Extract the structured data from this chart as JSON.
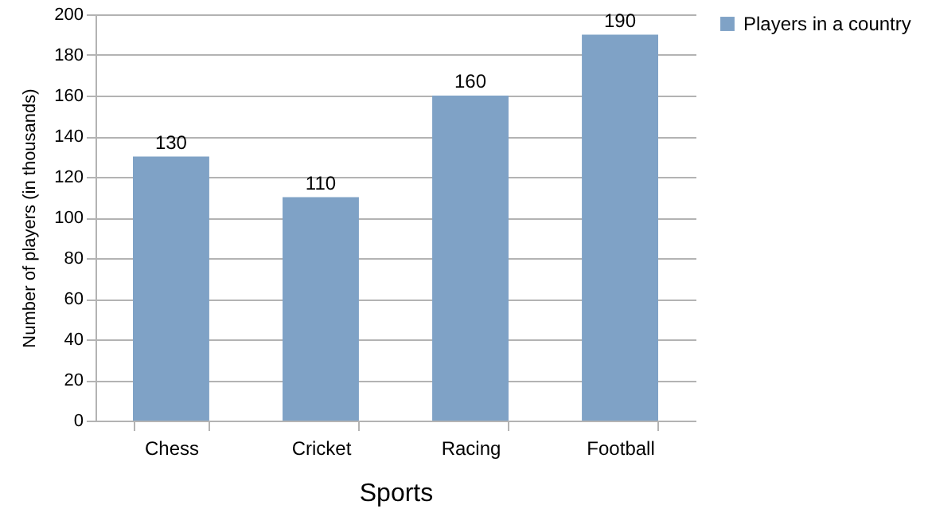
{
  "chart_data": {
    "type": "bar",
    "xlabel": "Sports",
    "ylabel": "Number of players (in thousands)",
    "categories": [
      "Chess",
      "Cricket",
      "Racing",
      "Football"
    ],
    "series": [
      {
        "name": "Players in a country",
        "color": "#7fa2c6",
        "values": [
          130,
          110,
          160,
          190
        ]
      }
    ],
    "ylim": [
      0,
      200
    ],
    "yticks": [
      0,
      20,
      40,
      60,
      80,
      100,
      120,
      140,
      160,
      180,
      200
    ],
    "grid": "y",
    "legend": "right",
    "data_labels": true
  }
}
